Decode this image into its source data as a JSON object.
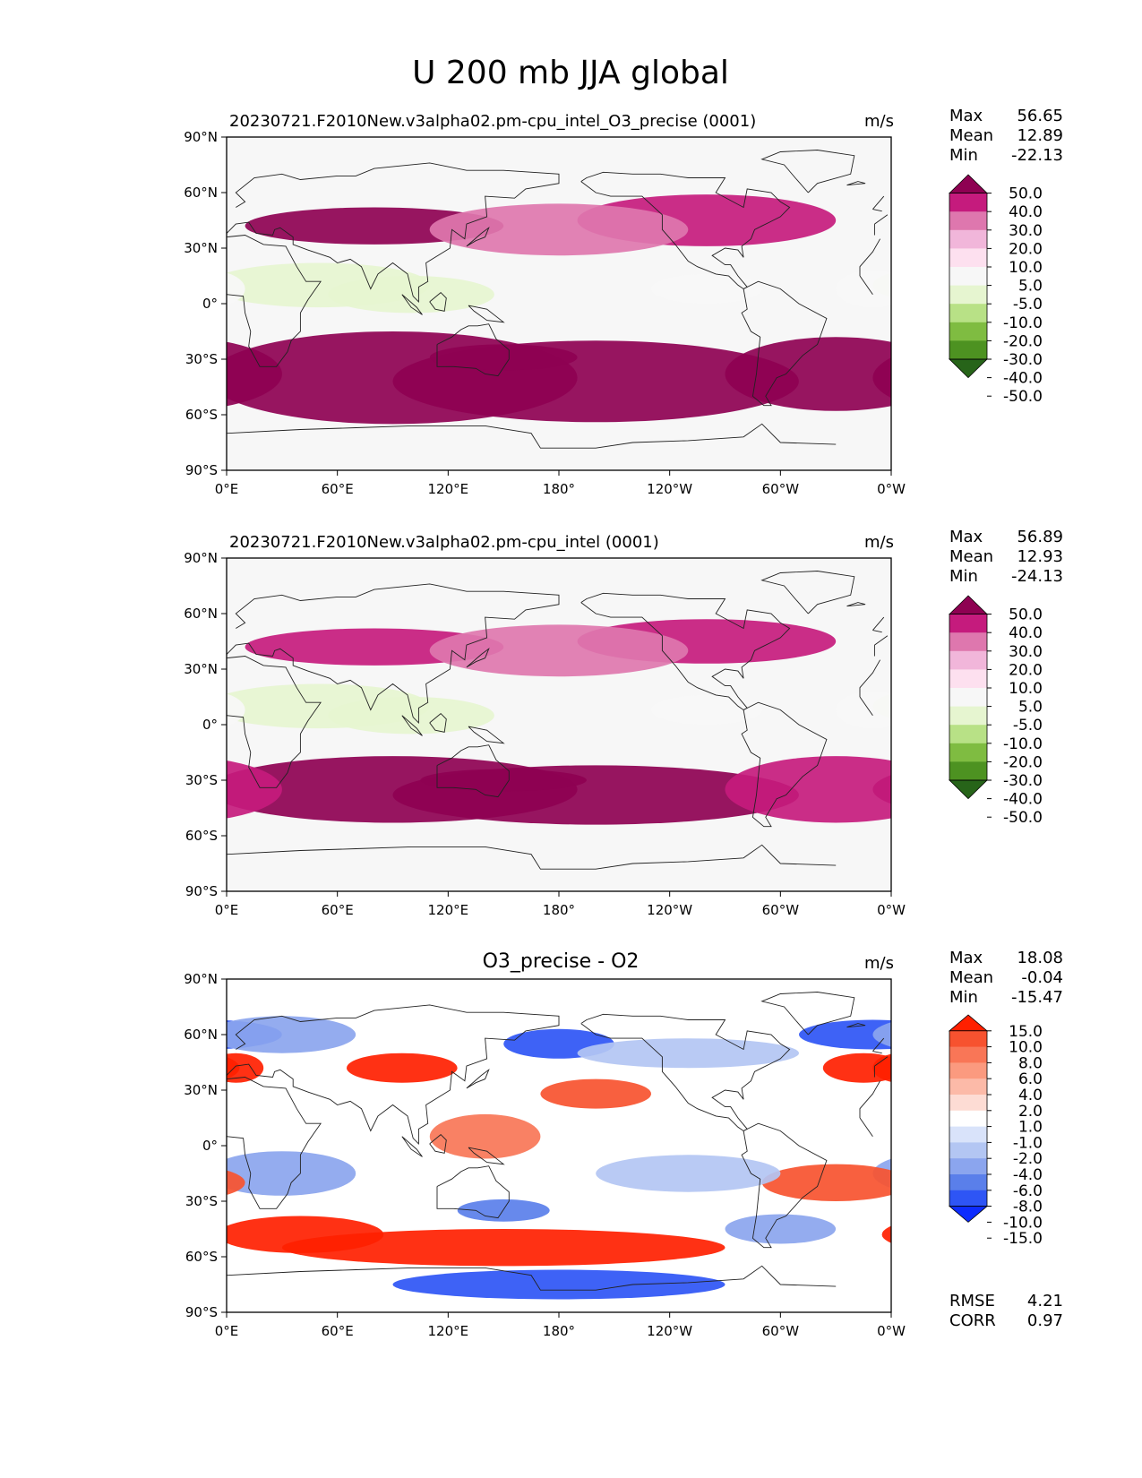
{
  "figure": {
    "title": "U 200 mb JJA global"
  },
  "colors": {
    "model_scale": [
      "#276419",
      "#4d9221",
      "#7fbc41",
      "#b8e186",
      "#e6f5d0",
      "#f7f7f7",
      "#fde0ef",
      "#f1b6da",
      "#de77ae",
      "#c51b7d",
      "#8e0152"
    ],
    "diff_scale": [
      "#0d2cff",
      "#2e55f5",
      "#5a7fea",
      "#8ba5ee",
      "#b3c6f3",
      "#d9e3fa",
      "#ffffff",
      "#fddcd4",
      "#fcbaa8",
      "#fb9a7f",
      "#f97657",
      "#f7522f",
      "#ff2000"
    ]
  },
  "chart_data": [
    {
      "type": "heatmap",
      "title": "20230721.F2010New.v3alpha02.pm-cpu_intel_O3_precise (0001)",
      "units": "m/s",
      "stats": {
        "max_label": "Max",
        "max": "56.65",
        "mean_label": "Mean",
        "mean": "12.89",
        "min_label": "Min",
        "min": "-22.13"
      },
      "x_ticks": [
        "0°E",
        "60°E",
        "120°E",
        "180°",
        "120°W",
        "60°W",
        "0°W"
      ],
      "y_ticks": [
        "90°N",
        "60°N",
        "30°N",
        "0°",
        "30°S",
        "60°S",
        "90°S"
      ],
      "xlim": [
        0,
        360
      ],
      "ylim": [
        -90,
        90
      ],
      "colorbar_levels": [
        "50.0",
        "40.0",
        "30.0",
        "20.0",
        "10.0",
        "5.0",
        "-5.0",
        "-10.0",
        "-20.0",
        "-30.0",
        "-40.0",
        "-50.0"
      ],
      "features": [
        {
          "lon": 90,
          "lat": -40,
          "w": 100,
          "h": 25,
          "v": 38
        },
        {
          "lon": 200,
          "lat": -42,
          "w": 110,
          "h": 22,
          "v": 36
        },
        {
          "lon": 150,
          "lat": -29,
          "w": 40,
          "h": 7,
          "v": 52
        },
        {
          "lon": 330,
          "lat": -38,
          "w": 60,
          "h": 20,
          "v": 32
        },
        {
          "lon": 80,
          "lat": 42,
          "w": 70,
          "h": 10,
          "v": 33
        },
        {
          "lon": 260,
          "lat": 45,
          "w": 70,
          "h": 14,
          "v": 25
        },
        {
          "lon": 180,
          "lat": 40,
          "w": 70,
          "h": 14,
          "v": 16
        },
        {
          "lon": 50,
          "lat": 10,
          "w": 60,
          "h": 12,
          "v": -14
        },
        {
          "lon": 100,
          "lat": 5,
          "w": 45,
          "h": 10,
          "v": -15
        },
        {
          "lon": 260,
          "lat": 8,
          "w": 30,
          "h": 8,
          "v": -8
        },
        {
          "lon": 350,
          "lat": 8,
          "w": 20,
          "h": 10,
          "v": -10
        }
      ]
    },
    {
      "type": "heatmap",
      "title": "20230721.F2010New.v3alpha02.pm-cpu_intel (0001)",
      "units": "m/s",
      "stats": {
        "max_label": "Max",
        "max": "56.89",
        "mean_label": "Mean",
        "mean": "12.93",
        "min_label": "Min",
        "min": "-24.13"
      },
      "x_ticks": [
        "0°E",
        "60°E",
        "120°E",
        "180°",
        "120°W",
        "60°W",
        "0°W"
      ],
      "y_ticks": [
        "90°N",
        "60°N",
        "30°N",
        "0°",
        "30°S",
        "60°S",
        "90°S"
      ],
      "xlim": [
        0,
        360
      ],
      "ylim": [
        -90,
        90
      ],
      "colorbar_levels": [
        "50.0",
        "40.0",
        "30.0",
        "20.0",
        "10.0",
        "5.0",
        "-5.0",
        "-10.0",
        "-20.0",
        "-30.0",
        "-40.0",
        "-50.0"
      ],
      "features": [
        {
          "lon": 90,
          "lat": -35,
          "w": 100,
          "h": 18,
          "v": 36
        },
        {
          "lon": 200,
          "lat": -38,
          "w": 110,
          "h": 16,
          "v": 32
        },
        {
          "lon": 150,
          "lat": -30,
          "w": 45,
          "h": 6,
          "v": 52
        },
        {
          "lon": 330,
          "lat": -35,
          "w": 60,
          "h": 18,
          "v": 28
        },
        {
          "lon": 80,
          "lat": 42,
          "w": 70,
          "h": 10,
          "v": 28
        },
        {
          "lon": 260,
          "lat": 45,
          "w": 70,
          "h": 12,
          "v": 24
        },
        {
          "lon": 180,
          "lat": 40,
          "w": 70,
          "h": 14,
          "v": 18
        },
        {
          "lon": 50,
          "lat": 10,
          "w": 60,
          "h": 12,
          "v": -15
        },
        {
          "lon": 100,
          "lat": 5,
          "w": 45,
          "h": 10,
          "v": -16
        },
        {
          "lon": 260,
          "lat": 8,
          "w": 30,
          "h": 8,
          "v": -8
        },
        {
          "lon": 350,
          "lat": 8,
          "w": 20,
          "h": 10,
          "v": -10
        }
      ]
    },
    {
      "type": "heatmap",
      "title": "O3_precise - O2",
      "units": "m/s",
      "stats": {
        "max_label": "Max",
        "max": "18.08",
        "mean_label": "Mean",
        "mean": "-0.04",
        "min_label": "Min",
        "min": "-15.47",
        "rmse_label": "RMSE",
        "rmse": "4.21",
        "corr_label": "CORR",
        "corr": "0.97"
      },
      "x_ticks": [
        "0°E",
        "60°E",
        "120°E",
        "180°",
        "120°W",
        "60°W",
        "0°W"
      ],
      "y_ticks": [
        "90°N",
        "60°N",
        "30°N",
        "0°",
        "30°S",
        "60°S",
        "90°S"
      ],
      "xlim": [
        0,
        360
      ],
      "ylim": [
        -90,
        90
      ],
      "colorbar_levels": [
        "15.0",
        "10.0",
        "8.0",
        "6.0",
        "4.0",
        "2.0",
        "1.0",
        "-1.0",
        "-2.0",
        "-4.0",
        "-6.0",
        "-8.0",
        "-10.0",
        "-15.0"
      ],
      "features": [
        {
          "lon": 150,
          "lat": -55,
          "w": 120,
          "h": 10,
          "v": 12
        },
        {
          "lon": 40,
          "lat": -48,
          "w": 45,
          "h": 10,
          "v": 10
        },
        {
          "lon": 180,
          "lat": -75,
          "w": 90,
          "h": 8,
          "v": -12
        },
        {
          "lon": 150,
          "lat": -35,
          "w": 25,
          "h": 6,
          "v": -10
        },
        {
          "lon": 345,
          "lat": 42,
          "w": 22,
          "h": 8,
          "v": 16
        },
        {
          "lon": 5,
          "lat": 42,
          "w": 15,
          "h": 8,
          "v": 14
        },
        {
          "lon": 350,
          "lat": 60,
          "w": 40,
          "h": 8,
          "v": -12
        },
        {
          "lon": 180,
          "lat": 55,
          "w": 30,
          "h": 8,
          "v": -12
        },
        {
          "lon": 95,
          "lat": 42,
          "w": 30,
          "h": 8,
          "v": 9
        },
        {
          "lon": 30,
          "lat": 60,
          "w": 40,
          "h": 10,
          "v": -8
        },
        {
          "lon": 250,
          "lat": 50,
          "w": 60,
          "h": 8,
          "v": -6
        },
        {
          "lon": 200,
          "lat": 28,
          "w": 30,
          "h": 8,
          "v": 6
        },
        {
          "lon": 140,
          "lat": 5,
          "w": 30,
          "h": 12,
          "v": 5
        },
        {
          "lon": 30,
          "lat": -15,
          "w": 40,
          "h": 12,
          "v": -7
        },
        {
          "lon": 330,
          "lat": -20,
          "w": 40,
          "h": 10,
          "v": 6
        },
        {
          "lon": 250,
          "lat": -15,
          "w": 50,
          "h": 10,
          "v": -5
        },
        {
          "lon": 300,
          "lat": -45,
          "w": 30,
          "h": 8,
          "v": -8
        }
      ]
    }
  ]
}
